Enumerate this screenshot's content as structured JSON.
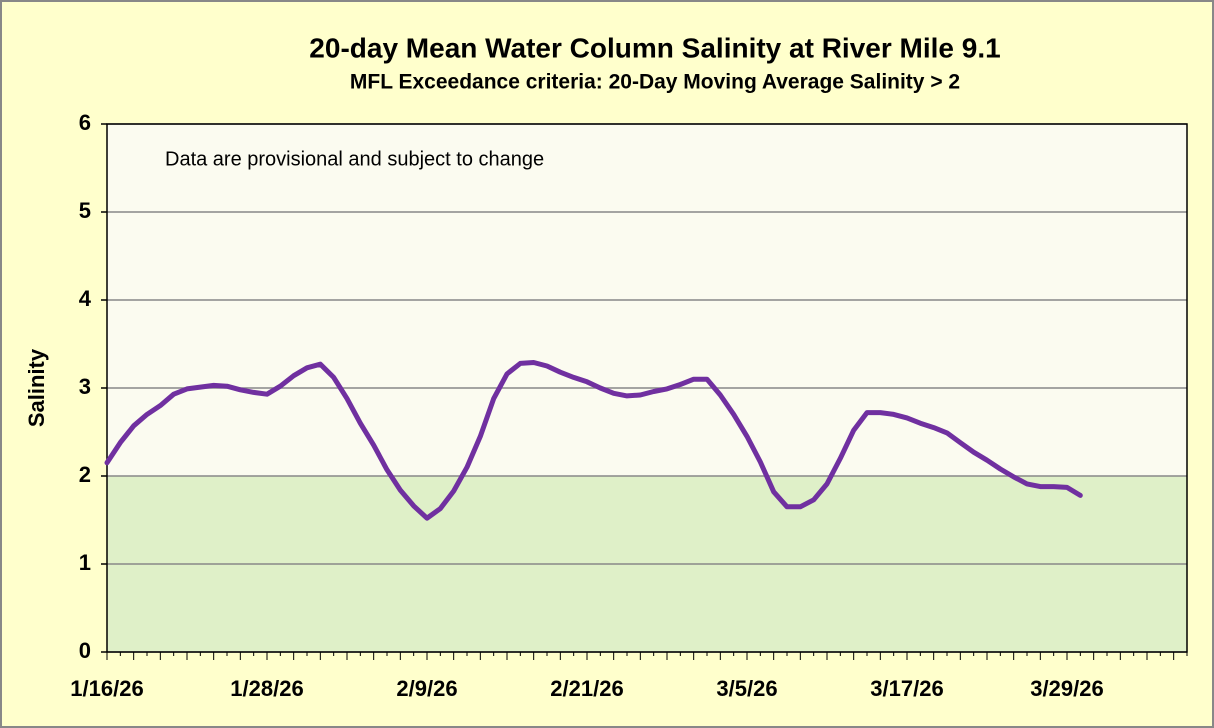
{
  "chart_data": {
    "type": "line",
    "title": "20-day Mean Water Column Salinity at River Mile 9.1",
    "subtitle": "MFL Exceedance criteria: 20-Day Moving Average Salinity > 2",
    "y_label": "Salinity",
    "annotation": "Data are provisional and subject to change",
    "categories": [
      "1/16/26",
      null,
      null,
      null,
      null,
      null,
      null,
      null,
      null,
      null,
      null,
      null,
      "1/28/26",
      null,
      null,
      null,
      null,
      null,
      null,
      null,
      null,
      null,
      null,
      null,
      "2/9/26",
      null,
      null,
      null,
      null,
      null,
      null,
      null,
      null,
      null,
      null,
      null,
      "2/21/26",
      null,
      null,
      null,
      null,
      null,
      null,
      null,
      null,
      null,
      null,
      null,
      "3/5/26",
      null,
      null,
      null,
      null,
      null,
      null,
      null,
      null,
      null,
      null,
      null,
      "3/17/26",
      null,
      null,
      null,
      null,
      null,
      null,
      null,
      null,
      null,
      null,
      null,
      "3/29/26",
      null,
      null,
      null,
      null,
      null,
      null,
      null,
      null,
      null
    ],
    "values": [
      2.15,
      2.38,
      2.57,
      2.7,
      2.8,
      2.93,
      2.99,
      3.01,
      3.03,
      3.02,
      2.98,
      2.95,
      2.93,
      3.02,
      3.14,
      3.23,
      3.27,
      3.12,
      2.88,
      2.6,
      2.35,
      2.07,
      1.84,
      1.66,
      1.52,
      1.63,
      1.83,
      2.1,
      2.45,
      2.88,
      3.16,
      3.28,
      3.29,
      3.25,
      3.18,
      3.12,
      3.07,
      3.0,
      2.94,
      2.91,
      2.92,
      2.96,
      2.99,
      3.04,
      3.1,
      3.1,
      2.92,
      2.7,
      2.45,
      2.16,
      1.82,
      1.65,
      1.65,
      1.73,
      1.91,
      2.2,
      2.52,
      2.72,
      2.72,
      2.7,
      2.66,
      2.6,
      2.55,
      2.49,
      2.38,
      2.27,
      2.18,
      2.08,
      1.99,
      1.91,
      1.88,
      1.88,
      1.87,
      1.78,
      null,
      null,
      null,
      null,
      null,
      null,
      null,
      null
    ],
    "color": "#7030a0",
    "ylim": [
      0,
      6
    ],
    "yticks": [
      0,
      1,
      2,
      3,
      4,
      5,
      6
    ],
    "grid": true,
    "shaded_below": 2,
    "shade_color": "#dff0c8"
  }
}
